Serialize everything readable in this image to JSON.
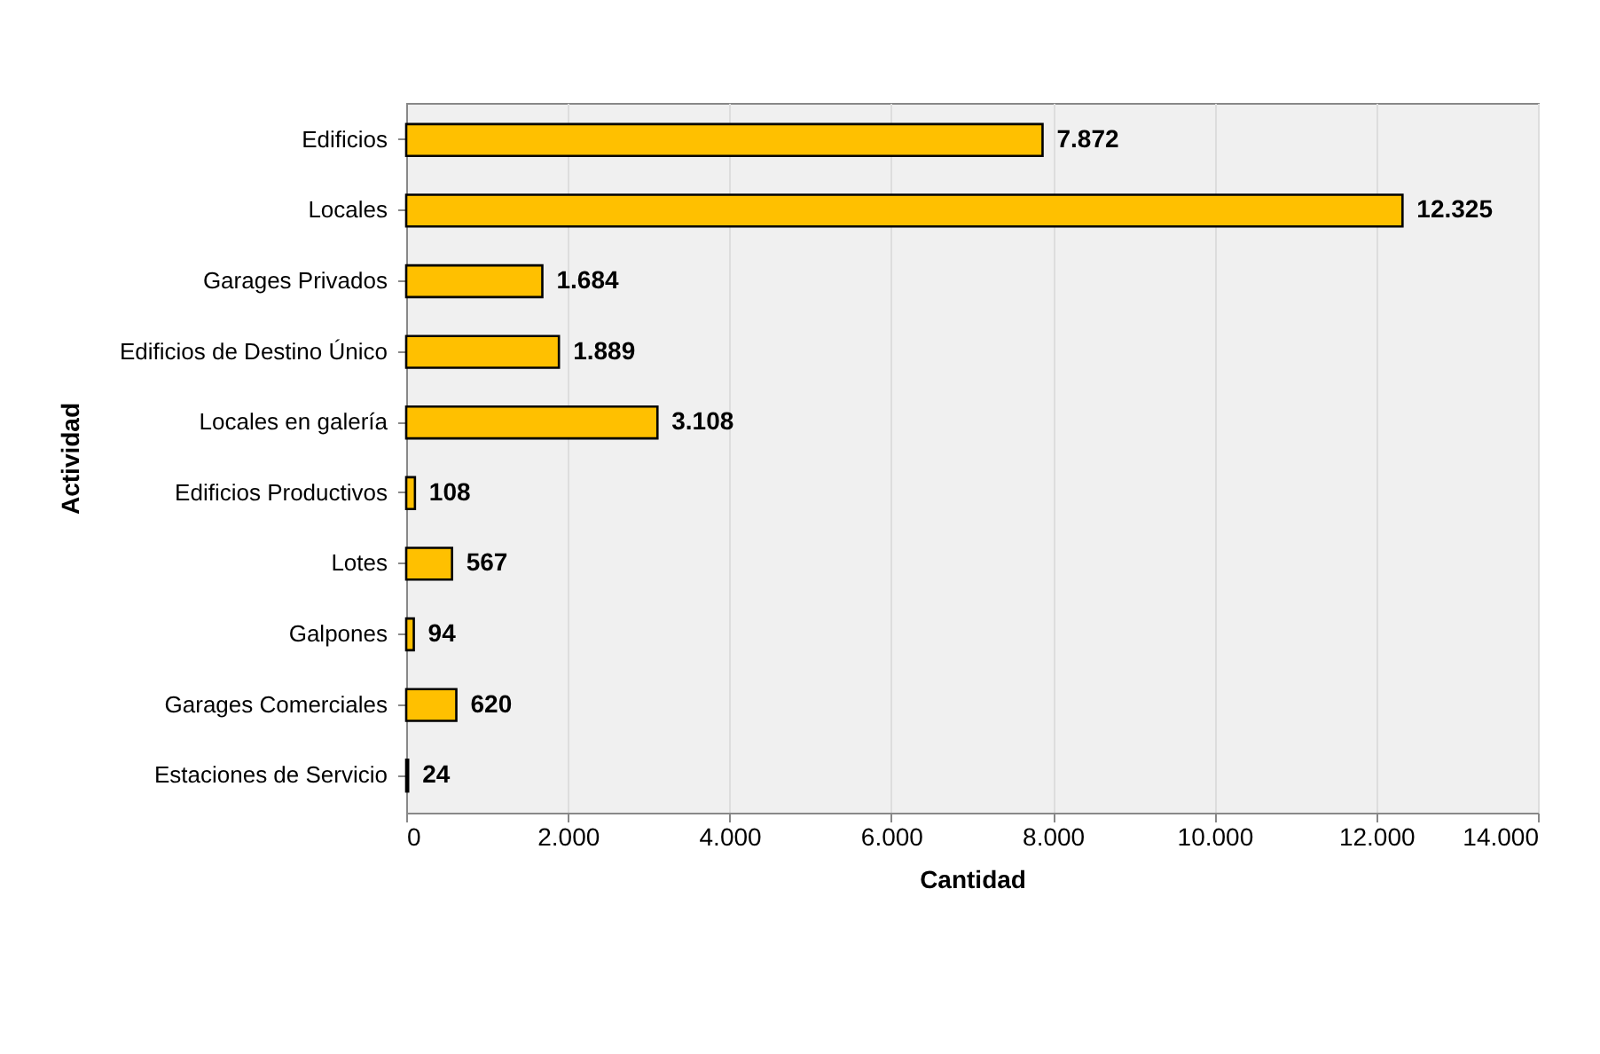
{
  "chart_data": {
    "type": "bar",
    "orientation": "horizontal",
    "xlabel": "Cantidad",
    "ylabel": "Actividad",
    "categories": [
      "Edificios",
      "Locales",
      "Garages Privados",
      "Edificios de Destino Único",
      "Locales en galería",
      "Edificios Productivos",
      "Lotes",
      "Galpones",
      "Garages Comerciales",
      "Estaciones de Servicio"
    ],
    "values": [
      7872,
      12325,
      1684,
      1889,
      3108,
      108,
      567,
      94,
      620,
      24
    ],
    "value_labels": [
      "7.872",
      "12.325",
      "1.684",
      "1.889",
      "3.108",
      "108",
      "567",
      "94",
      "620",
      "24"
    ],
    "color": "#ffc000",
    "xlim": [
      0,
      14000
    ],
    "xticks": [
      0,
      {
        "value": 2000,
        "label": "2.000"
      },
      {
        "value": 4000,
        "label": "4.000"
      },
      {
        "value": 6000,
        "label": "6.000"
      },
      {
        "value": 8000,
        "label": "8.000"
      },
      {
        "value": 10000,
        "label": "10.000"
      },
      {
        "value": 12000,
        "label": "12.000"
      },
      {
        "value": 14000,
        "label": "14.000"
      }
    ],
    "grid": "x"
  }
}
